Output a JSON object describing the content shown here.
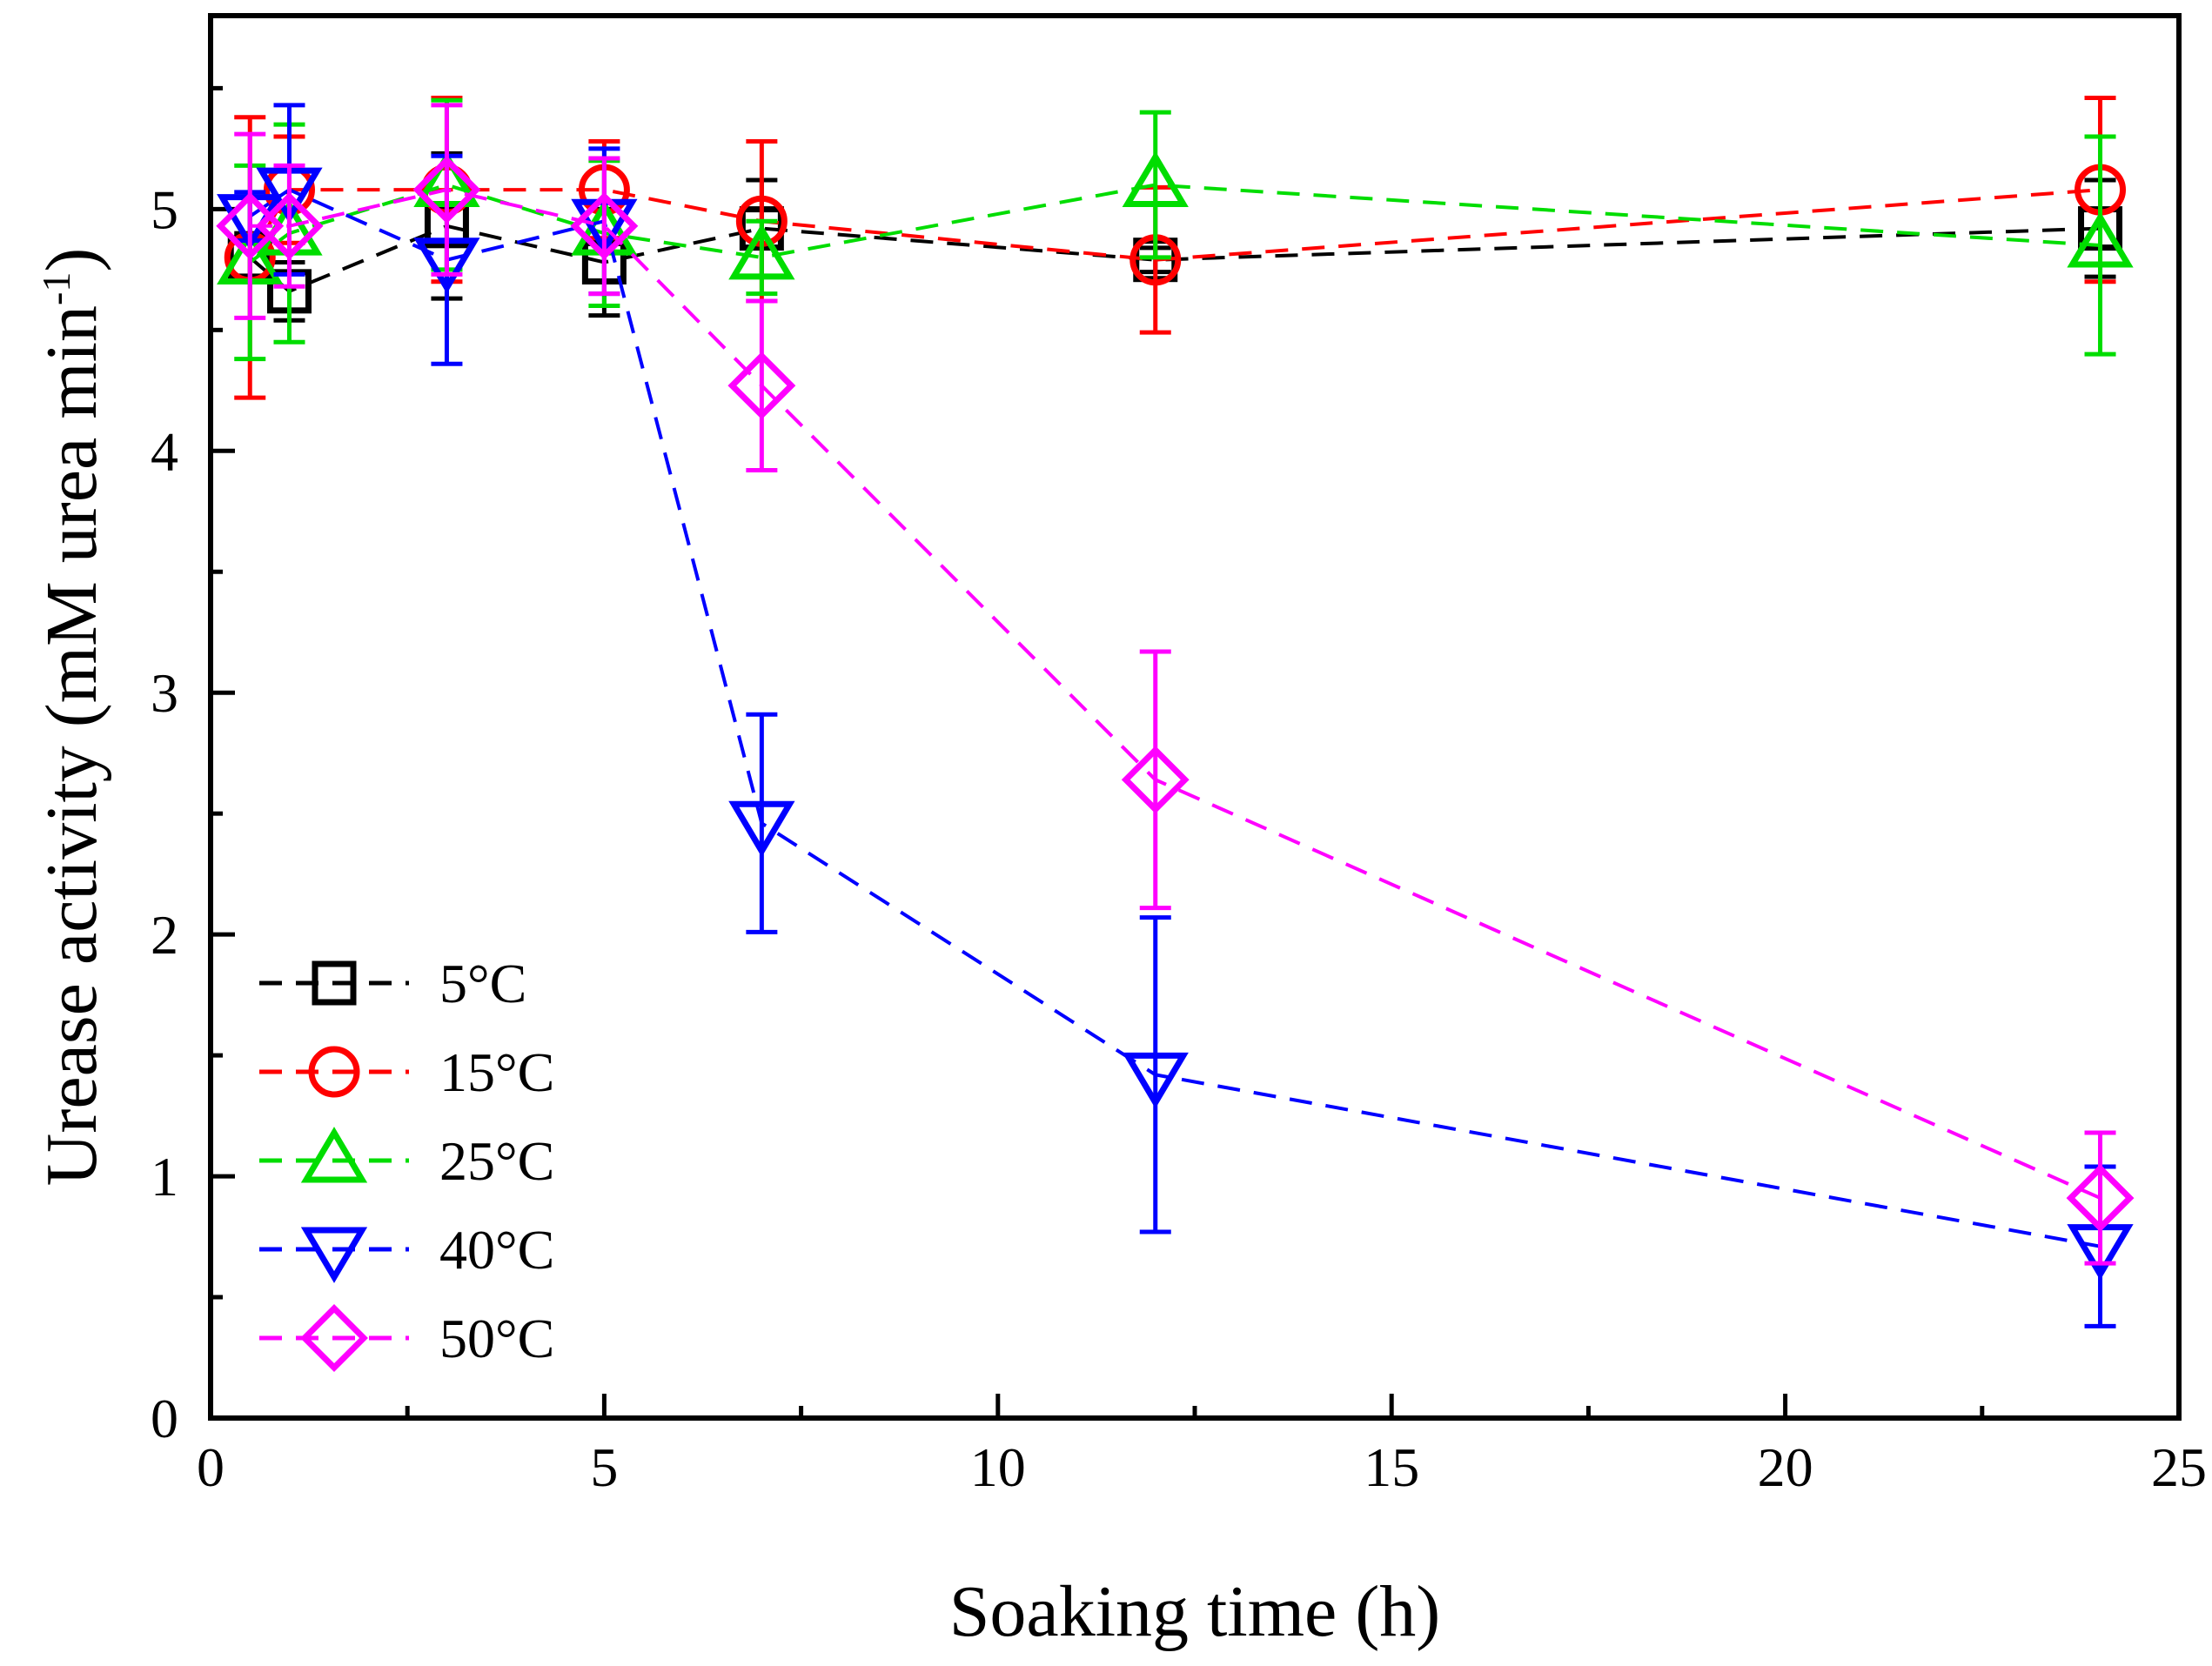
{
  "chart_data": {
    "type": "line",
    "title": "",
    "xlabel": "Soaking time (h)",
    "ylabel_main": "Urease activity (mM urea min",
    "ylabel_sup": "-1",
    "ylabel_close": ")",
    "xlim": [
      0,
      25
    ],
    "ylim": [
      0,
      5.8
    ],
    "xticks": [
      0,
      5,
      10,
      15,
      20,
      25
    ],
    "xtick_labels": [
      "0",
      "5",
      "10",
      "15",
      "20",
      "25"
    ],
    "yticks": [
      0,
      1,
      2,
      3,
      4,
      5
    ],
    "ytick_labels": [
      "0",
      "1",
      "2",
      "3",
      "4",
      "5"
    ],
    "grid": false,
    "legend_position": "bottom-left",
    "series": [
      {
        "name": "5°C",
        "color": "#000000",
        "marker": "square",
        "x": [
          0.5,
          1,
          3,
          5,
          7,
          12,
          24
        ],
        "y": [
          4.8,
          4.66,
          4.93,
          4.78,
          4.92,
          4.79,
          4.92
        ],
        "err": [
          0.1,
          0.12,
          0.3,
          0.22,
          0.2,
          0.05,
          0.2
        ]
      },
      {
        "name": "15°C",
        "color": "#ff0000",
        "marker": "circle",
        "x": [
          0.5,
          1,
          3,
          5,
          7,
          12,
          24
        ],
        "y": [
          4.8,
          5.08,
          5.08,
          5.08,
          4.95,
          4.79,
          5.08
        ],
        "err": [
          0.58,
          0.22,
          0.38,
          0.2,
          0.33,
          0.3,
          0.38
        ]
      },
      {
        "name": "25°C",
        "color": "#00dd00",
        "marker": "triangle-up",
        "x": [
          0.5,
          1,
          3,
          5,
          7,
          12,
          24
        ],
        "y": [
          4.78,
          4.9,
          5.1,
          4.9,
          4.8,
          5.1,
          4.85
        ],
        "err": [
          0.4,
          0.45,
          0.35,
          0.3,
          0.15,
          0.3,
          0.45
        ]
      },
      {
        "name": "40°C",
        "color": "#0000ff",
        "marker": "triangle-down",
        "x": [
          0.5,
          1,
          3,
          5,
          7,
          12,
          24
        ],
        "y": [
          4.97,
          5.08,
          4.79,
          4.95,
          2.46,
          1.42,
          0.71
        ],
        "err": [
          0.1,
          0.35,
          0.43,
          0.3,
          0.45,
          0.65,
          0.33
        ]
      },
      {
        "name": "50°C",
        "color": "#ff00ff",
        "marker": "diamond",
        "x": [
          0.5,
          1,
          3,
          5,
          7,
          12,
          24
        ],
        "y": [
          4.93,
          4.93,
          5.08,
          4.93,
          4.27,
          2.64,
          0.91
        ],
        "err": [
          0.38,
          0.25,
          0.35,
          0.28,
          0.35,
          0.53,
          0.27
        ]
      }
    ]
  }
}
